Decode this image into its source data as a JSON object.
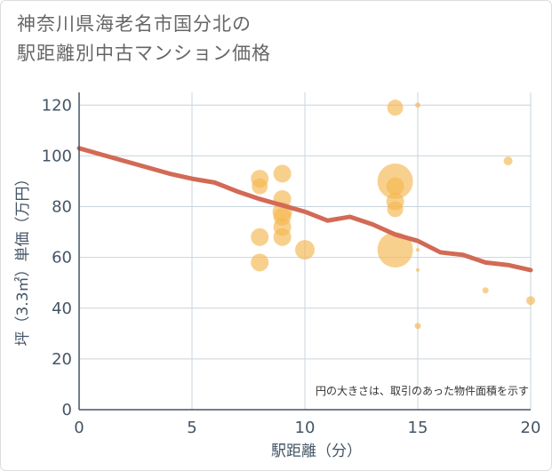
{
  "title_lines": [
    "神奈川県海老名市国分北の",
    "駅距離別中古マンション価格"
  ],
  "chart_data": {
    "type": "scatter",
    "title": "神奈川県海老名市国分北の駅距離別中古マンション価格",
    "xlabel": "駅距離（分）",
    "ylabel": "坪（3.3㎡）単価（万円）",
    "xlim": [
      0,
      20
    ],
    "ylim": [
      0,
      125
    ],
    "x_ticks": [
      "0",
      "5",
      "10",
      "15",
      "20"
    ],
    "y_ticks": [
      "0",
      "20",
      "40",
      "60",
      "80",
      "100",
      "120"
    ],
    "grid": true,
    "note": "円の大きさは、取引のあった物件面積を示す",
    "bubble_color": "#f5b750",
    "line_color": "#d26a55",
    "points": [
      {
        "x": 8,
        "y": 91,
        "s": 10
      },
      {
        "x": 8,
        "y": 88,
        "s": 9
      },
      {
        "x": 8,
        "y": 68,
        "s": 10
      },
      {
        "x": 8,
        "y": 58,
        "s": 10
      },
      {
        "x": 9,
        "y": 93,
        "s": 10
      },
      {
        "x": 9,
        "y": 83,
        "s": 10
      },
      {
        "x": 9,
        "y": 78,
        "s": 11
      },
      {
        "x": 9,
        "y": 76,
        "s": 10
      },
      {
        "x": 9,
        "y": 72,
        "s": 10
      },
      {
        "x": 9,
        "y": 68,
        "s": 10
      },
      {
        "x": 10,
        "y": 63,
        "s": 11
      },
      {
        "x": 14,
        "y": 119,
        "s": 9
      },
      {
        "x": 14,
        "y": 90,
        "s": 20
      },
      {
        "x": 14,
        "y": 88,
        "s": 10
      },
      {
        "x": 14,
        "y": 82,
        "s": 10
      },
      {
        "x": 14,
        "y": 79,
        "s": 9
      },
      {
        "x": 14,
        "y": 63,
        "s": 20
      },
      {
        "x": 15,
        "y": 120,
        "s": 3
      },
      {
        "x": 15,
        "y": 63,
        "s": 2
      },
      {
        "x": 15,
        "y": 55,
        "s": 2
      },
      {
        "x": 15,
        "y": 33,
        "s": 3.5
      },
      {
        "x": 18,
        "y": 47,
        "s": 3.5
      },
      {
        "x": 19,
        "y": 98,
        "s": 5
      },
      {
        "x": 20,
        "y": 43,
        "s": 5
      }
    ],
    "trend": {
      "name": "",
      "x": [
        0,
        1,
        2,
        3,
        4,
        5,
        6,
        7,
        8,
        9,
        10,
        11,
        12,
        13,
        14,
        15,
        16,
        17,
        18,
        19,
        20
      ],
      "y": [
        103,
        100.5,
        98,
        95.5,
        93,
        91,
        89.5,
        86,
        83,
        80.5,
        78,
        74.5,
        76,
        73,
        69,
        66.5,
        62,
        61,
        58,
        57,
        55
      ]
    }
  }
}
